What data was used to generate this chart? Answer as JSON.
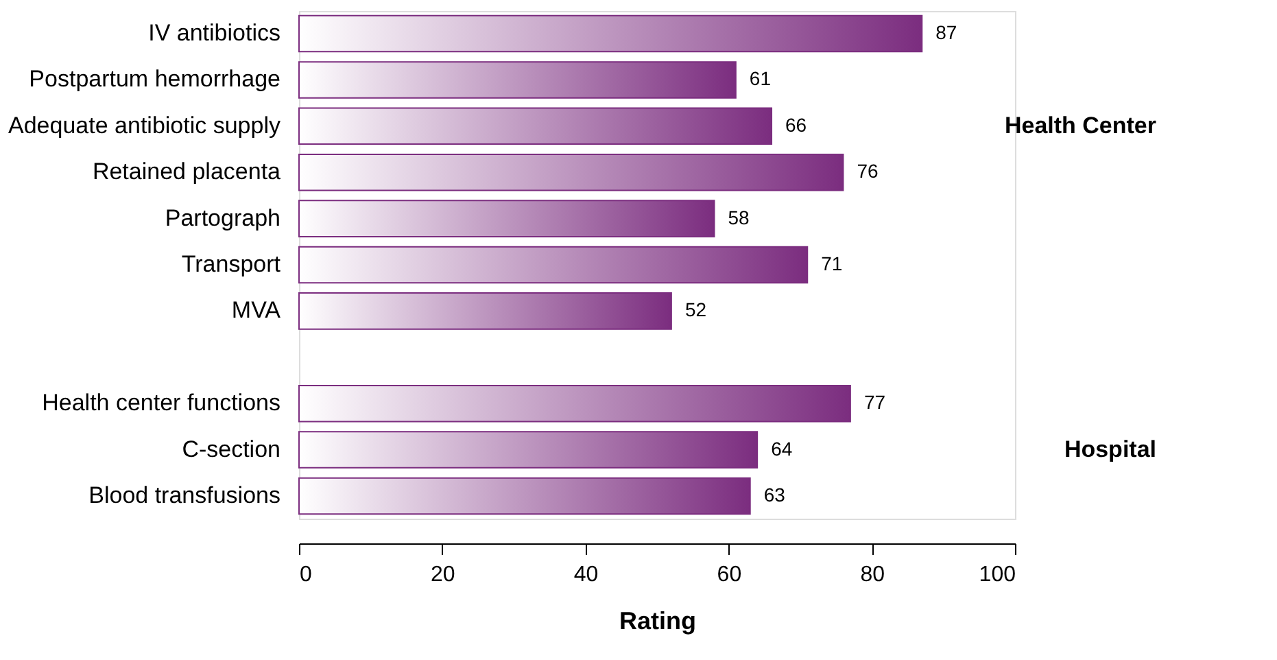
{
  "chart_data": {
    "type": "bar",
    "orientation": "horizontal",
    "xlabel": "Rating",
    "categories": [
      "IV antibiotics",
      "Postpartum hemorrhage",
      "Adequate antibiotic supply",
      "Retained placenta",
      "Partograph",
      "Transport",
      "MVA",
      null,
      "Health center functions",
      "C-section",
      "Blood transfusions"
    ],
    "values": [
      87,
      61,
      66,
      76,
      58,
      71,
      52,
      null,
      77,
      64,
      63
    ],
    "color": "#7b2d7f",
    "data_labels": true,
    "grid": false,
    "xlim": [
      0,
      100
    ],
    "xticks": [
      0,
      20,
      40,
      60,
      80,
      100
    ],
    "annotations": [
      "Health Center",
      "Hospital"
    ]
  }
}
